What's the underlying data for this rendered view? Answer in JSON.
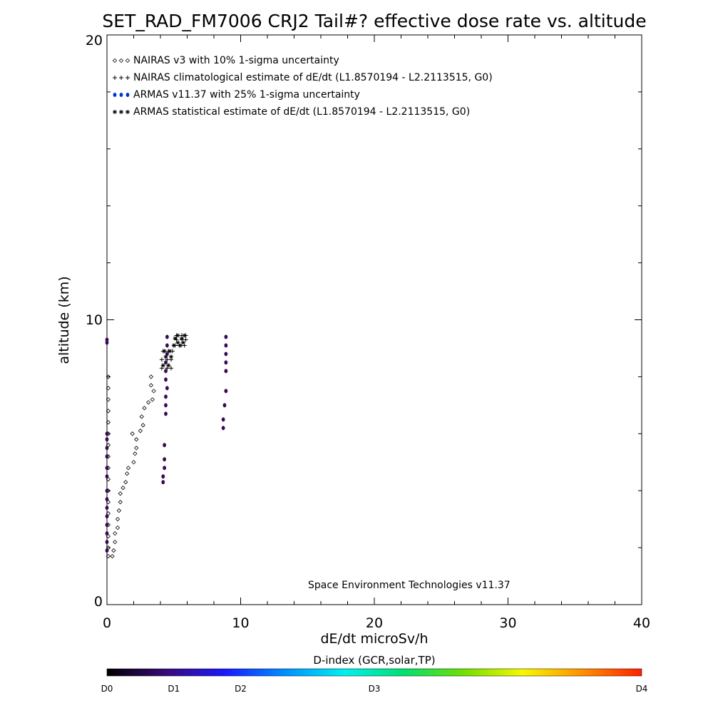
{
  "chart_data": {
    "type": "scatter",
    "title": "SET_RAD_FM7006  CRJ2 Tail#? effective dose rate vs. altitude",
    "xlabel": "dE/dt microSv/h",
    "ylabel": "altitude (km)",
    "xlim": [
      0,
      40
    ],
    "ylim": [
      0,
      20
    ],
    "x_ticks": [
      "0",
      "10",
      "20",
      "30",
      "40"
    ],
    "y_ticks": [
      "0",
      "10",
      "20"
    ],
    "grid": false,
    "legend_position": "top-left",
    "credit": "Space Environment Technologies v11.37",
    "series": [
      {
        "name": "NAIRAS v3 with 10% 1-sigma uncertainty",
        "marker": "diamond",
        "color": "#000000",
        "points": [
          [
            0.1,
            8.0
          ],
          [
            0.1,
            7.6
          ],
          [
            0.1,
            7.2
          ],
          [
            0.1,
            6.8
          ],
          [
            0.1,
            6.4
          ],
          [
            0.1,
            6.0
          ],
          [
            0.1,
            5.6
          ],
          [
            0.1,
            5.2
          ],
          [
            0.1,
            4.8
          ],
          [
            0.1,
            4.4
          ],
          [
            0.1,
            4.0
          ],
          [
            0.1,
            3.6
          ],
          [
            0.1,
            3.2
          ],
          [
            0.1,
            2.8
          ],
          [
            0.1,
            2.4
          ],
          [
            0.1,
            2.0
          ],
          [
            0.1,
            1.7
          ],
          [
            0.4,
            1.7
          ],
          [
            0.5,
            1.9
          ],
          [
            0.6,
            2.2
          ],
          [
            0.6,
            2.5
          ],
          [
            0.8,
            2.7
          ],
          [
            0.8,
            3.0
          ],
          [
            0.9,
            3.3
          ],
          [
            1.0,
            3.6
          ],
          [
            1.0,
            3.9
          ],
          [
            1.2,
            4.1
          ],
          [
            1.4,
            4.3
          ],
          [
            1.5,
            4.6
          ],
          [
            1.6,
            4.8
          ],
          [
            2.0,
            5.0
          ],
          [
            2.1,
            5.3
          ],
          [
            2.2,
            5.5
          ],
          [
            2.2,
            5.8
          ],
          [
            1.9,
            6.0
          ],
          [
            2.5,
            6.1
          ],
          [
            2.7,
            6.3
          ],
          [
            2.6,
            6.6
          ],
          [
            2.8,
            6.9
          ],
          [
            3.1,
            7.1
          ],
          [
            3.4,
            7.2
          ],
          [
            3.5,
            7.5
          ],
          [
            3.3,
            7.7
          ],
          [
            3.3,
            8.0
          ]
        ]
      },
      {
        "name": "NAIRAS climatological estimate of dE/dt (L1.8570194 - L2.2113515, G0)",
        "marker": "plus",
        "color": "#000000",
        "points": [
          [
            4.1,
            8.3
          ],
          [
            4.5,
            8.3
          ],
          [
            4.8,
            8.3
          ],
          [
            4.1,
            8.6
          ],
          [
            4.5,
            8.6
          ],
          [
            4.8,
            8.6
          ],
          [
            4.2,
            8.9
          ],
          [
            4.6,
            8.9
          ],
          [
            4.9,
            8.9
          ],
          [
            5.1,
            9.1
          ],
          [
            5.4,
            9.1
          ],
          [
            5.8,
            9.1
          ],
          [
            5.2,
            9.3
          ],
          [
            5.6,
            9.3
          ],
          [
            5.9,
            9.3
          ],
          [
            5.2,
            9.45
          ],
          [
            5.6,
            9.45
          ],
          [
            5.9,
            9.45
          ]
        ]
      },
      {
        "name": "ARMAS v11.37 with 25% 1-sigma uncertainty",
        "marker": "dot",
        "color": "#0033cc",
        "points": [
          [
            0.0,
            9.3
          ],
          [
            0.0,
            9.2
          ],
          [
            0.0,
            6.0
          ],
          [
            0.0,
            5.8
          ],
          [
            0.0,
            5.5
          ],
          [
            0.0,
            5.2
          ],
          [
            0.0,
            4.8
          ],
          [
            0.0,
            4.5
          ],
          [
            0.0,
            4.0
          ],
          [
            0.0,
            3.7
          ],
          [
            0.0,
            3.4
          ],
          [
            0.0,
            3.1
          ],
          [
            0.0,
            2.8
          ],
          [
            0.0,
            2.5
          ],
          [
            0.0,
            2.2
          ],
          [
            0.0,
            1.9
          ],
          [
            4.5,
            9.4
          ],
          [
            4.5,
            9.1
          ],
          [
            4.5,
            8.8
          ],
          [
            4.4,
            8.5
          ],
          [
            4.4,
            8.2
          ],
          [
            4.4,
            7.9
          ],
          [
            4.5,
            7.6
          ],
          [
            4.4,
            7.3
          ],
          [
            4.4,
            7.0
          ],
          [
            4.4,
            6.7
          ],
          [
            4.3,
            5.6
          ],
          [
            4.3,
            5.1
          ],
          [
            4.3,
            4.8
          ],
          [
            4.2,
            4.5
          ],
          [
            4.2,
            4.3
          ],
          [
            8.9,
            9.4
          ],
          [
            8.9,
            9.1
          ],
          [
            8.9,
            8.8
          ],
          [
            8.9,
            8.5
          ],
          [
            8.9,
            8.2
          ],
          [
            8.9,
            7.5
          ],
          [
            8.8,
            7.0
          ],
          [
            8.7,
            6.5
          ],
          [
            8.7,
            6.2
          ]
        ]
      },
      {
        "name": "ARMAS statistical estimate of dE/dt (L1.8570194 - L2.2113515, G0)",
        "marker": "asterisk",
        "color": "#000000",
        "points": [
          [
            4.2,
            8.4
          ],
          [
            4.6,
            8.4
          ],
          [
            4.4,
            8.7
          ],
          [
            4.8,
            8.7
          ],
          [
            4.3,
            8.9
          ],
          [
            4.7,
            8.9
          ],
          [
            5.0,
            9.1
          ],
          [
            5.5,
            9.1
          ],
          [
            5.3,
            9.2
          ],
          [
            5.7,
            9.2
          ],
          [
            5.1,
            9.35
          ],
          [
            5.6,
            9.35
          ],
          [
            5.3,
            9.45
          ],
          [
            5.8,
            9.45
          ]
        ]
      }
    ],
    "colorbar": {
      "title": "D-index (GCR,solar,TP)",
      "labels": [
        {
          "text": "D0",
          "value": 0
        },
        {
          "text": "D1",
          "value": 1
        },
        {
          "text": "D2",
          "value": 2
        },
        {
          "text": "D3",
          "value": 4
        },
        {
          "text": "D4",
          "value": 8
        }
      ],
      "max_value": 8,
      "colors": [
        "#000000",
        "#3a0a7a",
        "#1a1aff",
        "#0090ff",
        "#00f0f0",
        "#00e070",
        "#70e000",
        "#f8f800",
        "#ff9000",
        "#ff2000"
      ]
    }
  }
}
